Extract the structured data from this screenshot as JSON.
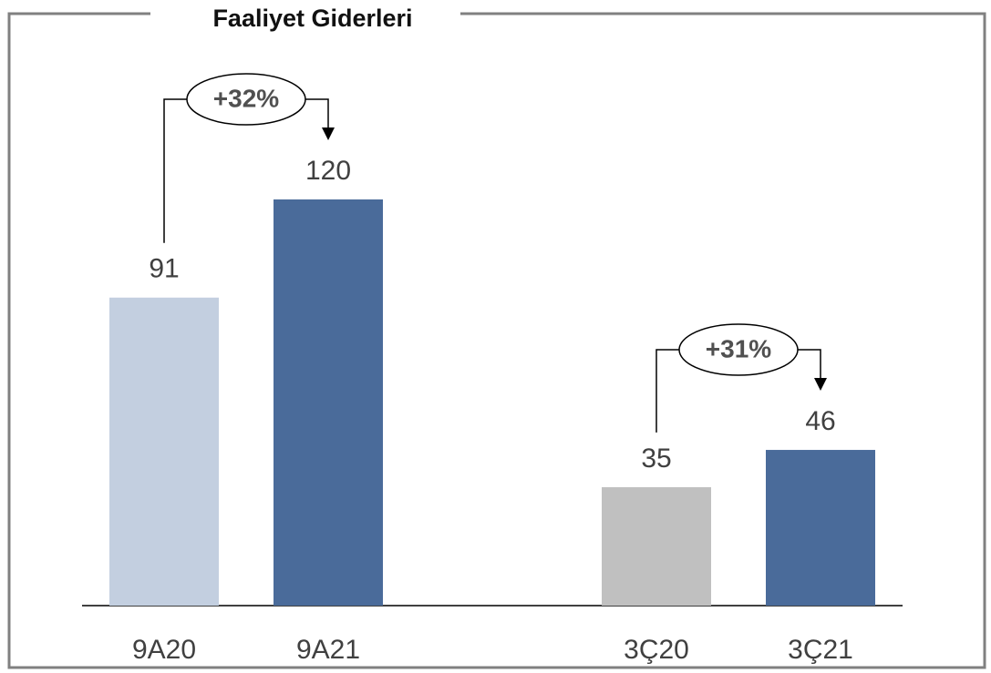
{
  "chart_data": {
    "type": "bar",
    "title": "Faaliyet Giderleri",
    "categories": [
      "9A20",
      "9A21",
      "3Ç20",
      "3Ç21"
    ],
    "values": [
      91,
      120,
      35,
      46
    ],
    "colors": [
      "#c3cfe0",
      "#4a6b9a",
      "#c0c0c0",
      "#4a6b9a"
    ],
    "annotations": [
      "+32%",
      "+31%"
    ]
  }
}
